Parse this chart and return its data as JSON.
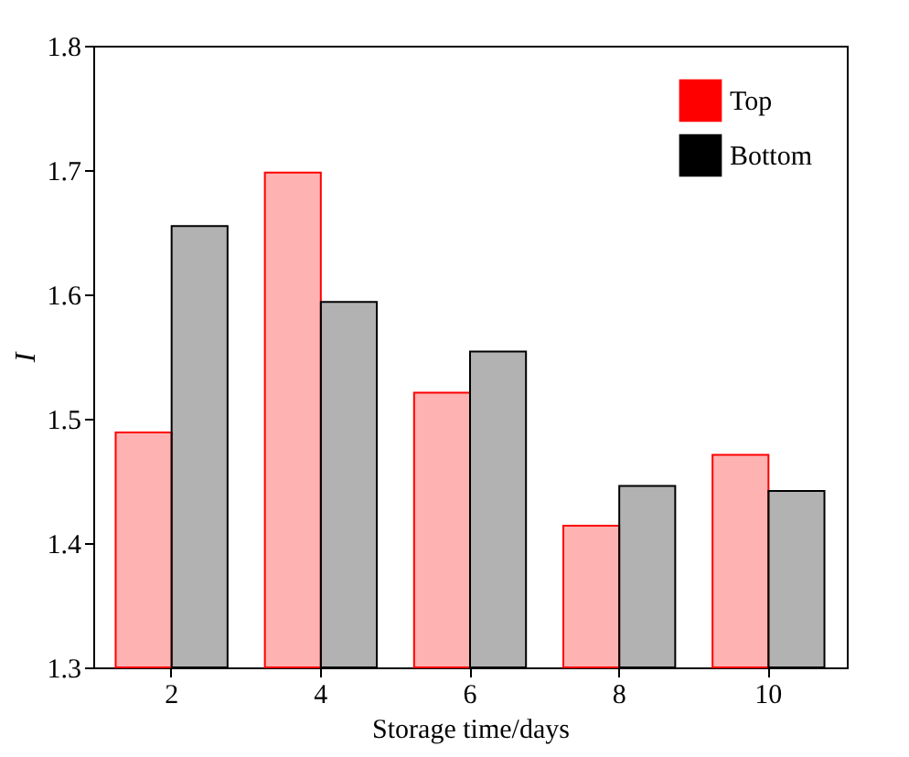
{
  "chart_data": {
    "type": "bar",
    "xlabel": "Storage time/days",
    "ylabel": "I",
    "categories": [
      "2",
      "4",
      "6",
      "8",
      "10"
    ],
    "series": [
      {
        "name": "Top",
        "color": "#ff0000",
        "values": [
          1.489,
          1.698,
          1.521,
          1.414,
          1.471
        ]
      },
      {
        "name": "Bottom",
        "color": "#000000",
        "values": [
          1.655,
          1.594,
          1.554,
          1.446,
          1.442
        ]
      }
    ],
    "ylim": [
      1.3,
      1.8
    ],
    "yticks": [
      1.3,
      1.4,
      1.5,
      1.6,
      1.7,
      1.8
    ],
    "grid": false,
    "legend": "top right"
  }
}
